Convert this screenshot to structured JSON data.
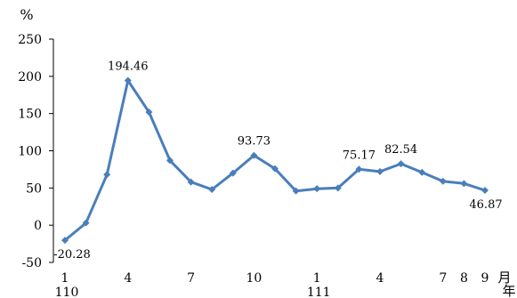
{
  "chart_data": {
    "type": "line",
    "ylabel": "%",
    "ylim": [
      -50,
      250
    ],
    "yticks": [
      -50,
      0,
      50,
      100,
      150,
      200,
      250
    ],
    "grid": false,
    "legend": "none",
    "x_tick_labels": [
      "1",
      "",
      "",
      "4",
      "",
      "",
      "7",
      "",
      "",
      "10",
      "",
      "",
      "1",
      "",
      "",
      "4",
      "",
      "",
      "7",
      "8",
      "9"
    ],
    "year_labels": [
      {
        "index": 0,
        "label": "110"
      },
      {
        "index": 12,
        "label": "111"
      }
    ],
    "x_unit_month": "月",
    "x_unit_year": "年",
    "series": [
      {
        "color": "#4a7ebb",
        "values": [
          -20.28,
          3,
          68,
          194.46,
          152,
          87,
          58,
          48,
          70,
          93.73,
          76,
          46,
          49,
          50,
          75.17,
          72,
          82.54,
          71,
          59,
          56,
          46.87
        ]
      }
    ],
    "data_labels": [
      {
        "index": 0,
        "text": "-20.28"
      },
      {
        "index": 3,
        "text": "194.46"
      },
      {
        "index": 9,
        "text": "93.73"
      },
      {
        "index": 14,
        "text": "75.17"
      },
      {
        "index": 16,
        "text": "82.54"
      },
      {
        "index": 20,
        "text": "46.87"
      }
    ]
  }
}
